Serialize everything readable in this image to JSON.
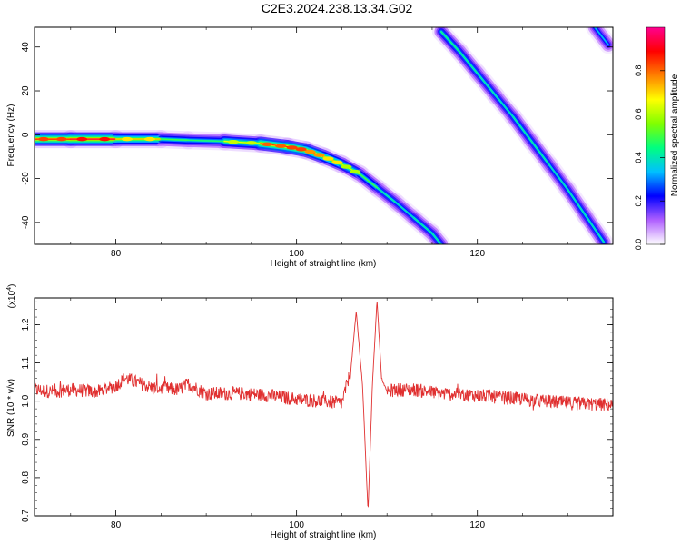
{
  "title": "C2E3.2024.238.13.34.G02",
  "chart_data": [
    {
      "type": "heatmap",
      "xlabel": "Height of straight line (km)",
      "ylabel": "Frequency (Hz)",
      "xlim": [
        71,
        135
      ],
      "ylim": [
        -50,
        49
      ],
      "xticks": [
        80,
        100,
        120
      ],
      "yticks": [
        -40,
        -20,
        0,
        20,
        40
      ],
      "colorbar": {
        "label": "Normalized spectral amplitude",
        "range": [
          0,
          1
        ],
        "ticks": [
          "0.0",
          "0.2",
          "0.4",
          "0.6",
          "0.8"
        ],
        "tick_values": [
          0,
          0.2,
          0.4,
          0.6,
          0.8
        ],
        "colors": [
          "#ffffff",
          "#b060ff",
          "#0000ff",
          "#00c0ff",
          "#00ff80",
          "#80ff00",
          "#ffff00",
          "#ff8000",
          "#ff0000",
          "#ff0090"
        ]
      },
      "traces": [
        {
          "x": [
            71,
            75,
            80,
            85,
            88,
            92,
            96,
            99,
            101,
            103,
            105,
            107,
            109,
            111,
            113,
            115,
            116
          ],
          "y": [
            -2,
            -2,
            -2,
            -2,
            -2.5,
            -3,
            -4,
            -5.5,
            -7,
            -10,
            -13.5,
            -18,
            -24.5,
            -31,
            -38,
            -45,
            -50
          ],
          "peak_amplitude": [
            0.8,
            0.95,
            0.9,
            0.55,
            0.45,
            0.5,
            0.8,
            0.9,
            0.85,
            0.75,
            0.7,
            0.55,
            0.45,
            0.4,
            0.4,
            0.45,
            0.4
          ]
        },
        {
          "x": [
            116,
            118,
            120,
            122,
            124,
            126,
            128,
            130,
            132,
            134
          ],
          "y": [
            47,
            38,
            28,
            18,
            8,
            -3,
            -14,
            -25,
            -37,
            -49
          ],
          "peak_amplitude": [
            0.45,
            0.45,
            0.42,
            0.42,
            0.4,
            0.45,
            0.4,
            0.4,
            0.42,
            0.4
          ]
        },
        {
          "x": [
            133,
            134.5
          ],
          "y": [
            49,
            41
          ],
          "peak_amplitude": [
            0.35,
            0.35
          ]
        }
      ]
    },
    {
      "type": "line",
      "xlabel": "Height of straight line (km)",
      "ylabel": "SNR (10 * v/v)",
      "multiplier": "(x10",
      "multiplier_exp": "4",
      "multiplier_close": ")",
      "xlim": [
        71,
        135
      ],
      "ylim": [
        0.7,
        1.27
      ],
      "xticks": [
        80,
        100,
        120
      ],
      "yticks": [
        "0.7",
        "0.8",
        "0.9",
        "1.0",
        "1.1",
        "1.2"
      ],
      "ytick_values": [
        0.7,
        0.8,
        0.9,
        1.0,
        1.1,
        1.2
      ],
      "color": "#e03030",
      "x": [
        71,
        73,
        75,
        78,
        80,
        81,
        84,
        87,
        88,
        90,
        92,
        94,
        97,
        100,
        103,
        105,
        106,
        106.6,
        107.3,
        107.9,
        108.4,
        108.9,
        109.4,
        110,
        111,
        113,
        116,
        120,
        125,
        130,
        135
      ],
      "y": [
        1.03,
        1.025,
        1.03,
        1.025,
        1.04,
        1.06,
        1.035,
        1.03,
        1.045,
        1.02,
        1.02,
        1.02,
        1.015,
        1.005,
        1.0,
        0.995,
        1.08,
        1.235,
        1.04,
        0.71,
        1.05,
        1.265,
        1.06,
        1.025,
        1.03,
        1.03,
        1.02,
        1.015,
        1.005,
        0.995,
        0.99
      ],
      "noise_amplitude": 0.018
    }
  ]
}
